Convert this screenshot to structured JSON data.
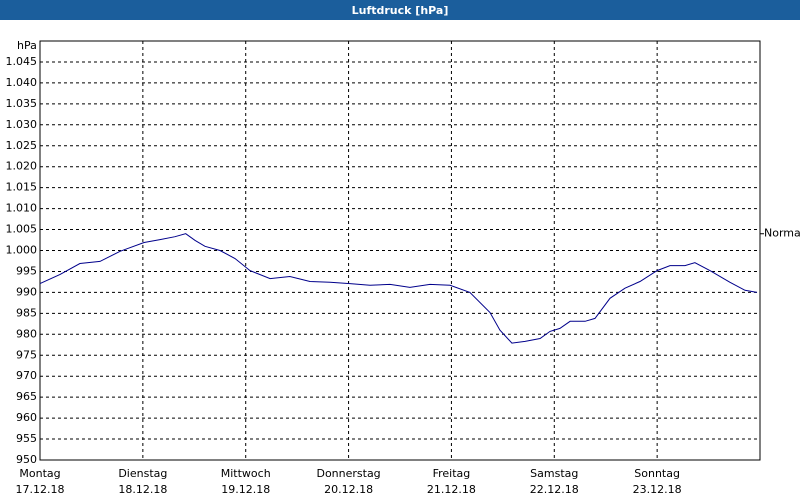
{
  "chart_data": {
    "type": "line",
    "title": "Luftdruck [hPa]",
    "y_label": "hPa",
    "x": [
      0,
      4.7,
      9.3,
      14,
      18.7,
      24.3,
      28,
      31.5,
      34,
      36.2,
      38.5,
      42,
      45.5,
      49,
      53.7,
      58.3,
      63,
      67.7,
      72.3,
      77,
      81.7,
      86.3,
      91,
      95.7,
      100.3,
      105,
      107.3,
      110.1,
      113.2,
      116.7,
      119,
      121.3,
      123.7,
      127.2,
      129.5,
      133,
      136.5,
      140,
      144,
      147,
      150.5,
      152.8,
      156.3,
      161,
      164.5,
      167.3
    ],
    "values": [
      992.1,
      994.3,
      996.9,
      997.4,
      999.8,
      1001.9,
      1002.6,
      1003.3,
      1004.0,
      1002.4,
      1001.0,
      1000.0,
      998.1,
      995.2,
      993.3,
      993.8,
      992.6,
      992.4,
      992.1,
      991.7,
      991.9,
      991.2,
      991.9,
      991.7,
      990.0,
      985.2,
      981.0,
      977.9,
      978.3,
      979.0,
      980.7,
      981.4,
      983.1,
      983.1,
      983.8,
      988.6,
      991.0,
      992.6,
      995.2,
      996.4,
      996.4,
      997.1,
      995.2,
      992.4,
      990.5,
      990.0
    ],
    "color": "#00008b",
    "xlim": [
      0,
      168
    ],
    "xticks": [
      {
        "value": 0,
        "label": "Montag"
      },
      {
        "value": 24,
        "label": "Dienstag"
      },
      {
        "value": 48,
        "label": "Mittwoch"
      },
      {
        "value": 72,
        "label": "Donnerstag"
      },
      {
        "value": 96,
        "label": "Freitag"
      },
      {
        "value": 120,
        "label": "Samstag"
      },
      {
        "value": 144,
        "label": "Sonntag"
      }
    ],
    "xtick_dates": [
      "17.12.18",
      "18.12.18",
      "19.12.18",
      "20.12.18",
      "21.12.18",
      "22.12.18",
      "23.12.18"
    ],
    "ylim": [
      950,
      1050
    ],
    "yticks": [
      950,
      955,
      960,
      965,
      970,
      975,
      980,
      985,
      990,
      995,
      {
        "value": 1000,
        "label": "1.000"
      },
      {
        "value": 1005,
        "label": "1.005"
      },
      {
        "value": 1010,
        "label": "1.010"
      },
      {
        "value": 1015,
        "label": "1.015"
      },
      {
        "value": 1020,
        "label": "1.020"
      },
      {
        "value": 1025,
        "label": "1.025"
      },
      {
        "value": 1030,
        "label": "1.030"
      },
      {
        "value": 1035,
        "label": "1.035"
      },
      {
        "value": 1040,
        "label": "1.040"
      },
      {
        "value": 1045,
        "label": "1.045"
      }
    ],
    "grid": true,
    "annotation": {
      "text": "Normal",
      "value": 1004
    }
  }
}
